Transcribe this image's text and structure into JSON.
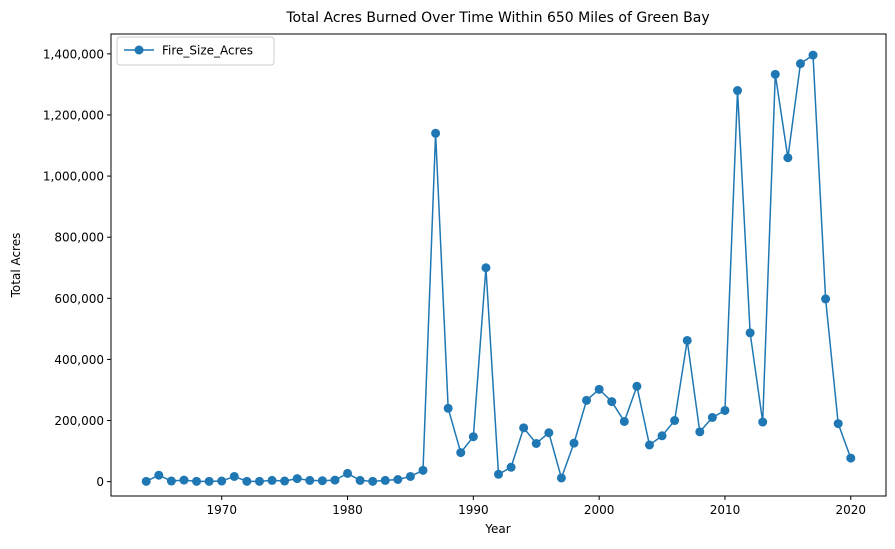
{
  "chart_data": {
    "type": "line",
    "title": "Total Acres Burned Over Time Within 650 Miles of Green Bay",
    "xlabel": "Year",
    "ylabel": "Total Acres",
    "xlim": [
      1961.2,
      2022.8
    ],
    "ylim": [
      -47000,
      1465000
    ],
    "x_ticks": [
      1970,
      1980,
      1990,
      2000,
      2010,
      2020
    ],
    "y_ticks": [
      0,
      200000,
      400000,
      600000,
      800000,
      1000000,
      1200000,
      1400000
    ],
    "y_tick_labels": [
      "0",
      "200,000",
      "400,000",
      "600,000",
      "800,000",
      "1,000,000",
      "1,200,000",
      "1,400,000"
    ],
    "grid": false,
    "legend_position": "top-left",
    "series": [
      {
        "name": "Fire_Size_Acres",
        "color": "#1f77b4",
        "marker": "circle",
        "points": [
          [
            1964,
            1000
          ],
          [
            1965,
            21000
          ],
          [
            1966,
            2000
          ],
          [
            1967,
            5000
          ],
          [
            1968,
            1000
          ],
          [
            1969,
            1000
          ],
          [
            1970,
            2000
          ],
          [
            1971,
            17000
          ],
          [
            1972,
            1000
          ],
          [
            1973,
            1000
          ],
          [
            1974,
            4000
          ],
          [
            1975,
            2000
          ],
          [
            1976,
            10000
          ],
          [
            1977,
            4000
          ],
          [
            1978,
            3000
          ],
          [
            1979,
            5000
          ],
          [
            1980,
            27000
          ],
          [
            1981,
            4000
          ],
          [
            1982,
            1000
          ],
          [
            1983,
            4000
          ],
          [
            1984,
            7000
          ],
          [
            1985,
            17000
          ],
          [
            1986,
            37000
          ],
          [
            1987,
            1140000
          ],
          [
            1988,
            240000
          ],
          [
            1989,
            95000
          ],
          [
            1990,
            147000
          ],
          [
            1991,
            700000
          ],
          [
            1992,
            24000
          ],
          [
            1993,
            47000
          ],
          [
            1994,
            176000
          ],
          [
            1995,
            125000
          ],
          [
            1996,
            160000
          ],
          [
            1997,
            12000
          ],
          [
            1998,
            126000
          ],
          [
            1999,
            266000
          ],
          [
            2000,
            302000
          ],
          [
            2001,
            262000
          ],
          [
            2002,
            197000
          ],
          [
            2003,
            312000
          ],
          [
            2004,
            120000
          ],
          [
            2005,
            150000
          ],
          [
            2006,
            200000
          ],
          [
            2007,
            462000
          ],
          [
            2008,
            163000
          ],
          [
            2009,
            210000
          ],
          [
            2010,
            233000
          ],
          [
            2011,
            1280000
          ],
          [
            2012,
            487000
          ],
          [
            2013,
            195000
          ],
          [
            2014,
            1333000
          ],
          [
            2015,
            1060000
          ],
          [
            2016,
            1368000
          ],
          [
            2017,
            1396000
          ],
          [
            2018,
            598000
          ],
          [
            2019,
            190000
          ],
          [
            2020,
            77000
          ]
        ]
      }
    ]
  }
}
